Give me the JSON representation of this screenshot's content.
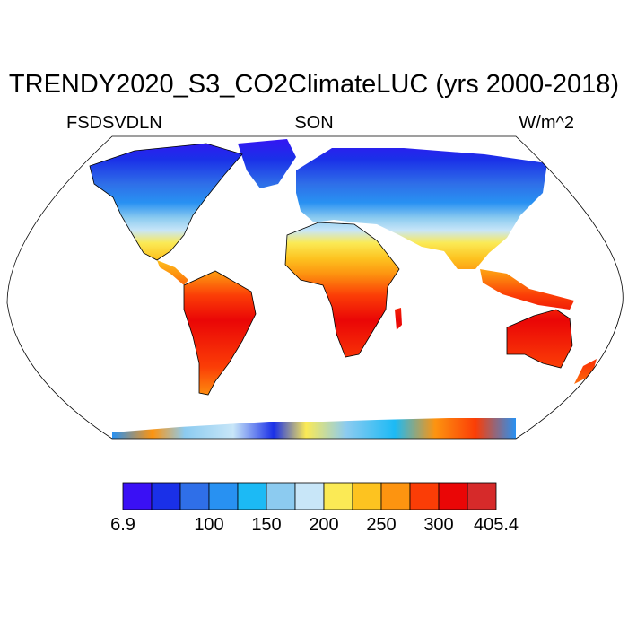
{
  "figure": {
    "title": "TRENDY2020_S3_CO2ClimateLUC (yrs 2000-2018)",
    "left_label": "FSDSVDLN",
    "center_label": "SON",
    "right_label": "W/m^2"
  },
  "colorbar": {
    "colors": [
      "#3a10f5",
      "#1a30e8",
      "#2f6fe8",
      "#2891f2",
      "#1cbaf5",
      "#8ccbf0",
      "#c8e6f8",
      "#fbea55",
      "#fdc320",
      "#fd9410",
      "#fb3d06",
      "#ea0606",
      "#d62a2a"
    ],
    "tick_labels": [
      "6.9",
      "100",
      "150",
      "200",
      "250",
      "300",
      "405.4"
    ]
  },
  "map": {
    "projection": "Robinson",
    "variable": "FSDSVDLN",
    "season": "SON",
    "land_only": true
  }
}
